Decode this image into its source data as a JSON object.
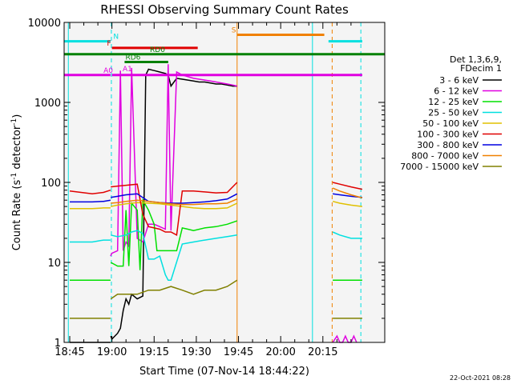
{
  "chart_data": {
    "type": "line",
    "title": "RHESSI Observing Summary Count Rates",
    "xlabel": "Start Time (07-Nov-14 18:44:22)",
    "ylabel_main": "Count Rate (s",
    "ylabel_sup1": "-1",
    "ylabel_mid": " detector",
    "ylabel_sup2": "-1",
    "ylabel_end": ")",
    "x_range_min": [
      -2,
      112
    ],
    "y_scale": "log",
    "ylim": [
      1,
      10000
    ],
    "grid": false,
    "x_ticks": [
      {
        "t": 0,
        "label": "18:45"
      },
      {
        "t": 15,
        "label": "19:00"
      },
      {
        "t": 30,
        "label": "19:15"
      },
      {
        "t": 45,
        "label": "19:30"
      },
      {
        "t": 60,
        "label": "19:45"
      },
      {
        "t": 75,
        "label": "20:00"
      },
      {
        "t": 90,
        "label": "20:15"
      }
    ],
    "y_ticks": [
      {
        "v": 1,
        "label": "1"
      },
      {
        "v": 10,
        "label": "10"
      },
      {
        "v": 100,
        "label": "100"
      },
      {
        "v": 1000,
        "label": "1000"
      },
      {
        "v": 10000,
        "label": "10000"
      }
    ],
    "legend_header": [
      "Det 1,3,6,9,",
      "FDecim 1"
    ],
    "series": [
      {
        "name": "3 - 6 keV",
        "color": "#000000",
        "segments": [
          {
            "x": [
              0,
              4,
              8,
              12,
              14.5
            ],
            "y": [
              1,
              1,
              1,
              1,
              1
            ]
          },
          {
            "x": [
              14.6,
              15,
              17,
              18,
              19,
              20,
              21,
              22,
              24,
              26,
              27,
              28,
              30,
              32,
              34,
              35,
              36,
              38,
              40,
              42,
              44,
              46,
              48,
              50,
              52,
              54,
              56,
              58,
              59.5
            ],
            "y": [
              1.2,
              1.1,
              1.3,
              1.5,
              2.5,
              3.5,
              3.0,
              4.0,
              3.5,
              3.8,
              2200,
              2600,
              2500,
              2400,
              2300,
              2200,
              1600,
              2000,
              1950,
              1900,
              1850,
              1800,
              1800,
              1750,
              1700,
              1700,
              1650,
              1600,
              1600
            ]
          }
        ]
      },
      {
        "name": "6 - 12 keV",
        "color": "#e000e0",
        "segments": [
          {
            "x": [
              14.5,
              15,
              17,
              18,
              19,
              20,
              21,
              22,
              24,
              26,
              28,
              30,
              32,
              34,
              35,
              36,
              38,
              40,
              42,
              44,
              46,
              48,
              50,
              52,
              54,
              56,
              58,
              59.5
            ],
            "y": [
              12,
              13,
              14,
              2500,
              14,
              18,
              16,
              2700,
              20,
              18,
              30,
              30,
              28,
              26,
              3000,
              25,
              2400,
              2200,
              2100,
              2000,
              1950,
              1900,
              1850,
              1800,
              1750,
              1700,
              1650,
              1600
            ]
          },
          {
            "x": [
              93.5,
              95,
              96,
              97,
              98,
              99,
              100,
              101,
              102
            ],
            "y": [
              1,
              1.2,
              1,
              1,
              1.2,
              1,
              1,
              1.2,
              1
            ]
          }
        ]
      },
      {
        "name": "12 - 25 keV",
        "color": "#00e000",
        "segments": [
          {
            "x": [
              0,
              4,
              8,
              12,
              14.5
            ],
            "y": [
              6,
              6,
              6,
              6,
              6
            ]
          },
          {
            "x": [
              14.6,
              17,
              19,
              20,
              21,
              22,
              24,
              25,
              26,
              28,
              30,
              31,
              32,
              34,
              36,
              38,
              40,
              42,
              44,
              48,
              52,
              56,
              59.5
            ],
            "y": [
              10,
              9,
              9,
              45,
              9,
              55,
              45,
              8,
              60,
              45,
              30,
              14,
              14,
              14,
              14,
              14,
              27,
              26,
              25,
              27,
              28,
              30,
              33
            ]
          },
          {
            "x": [
              93.5,
              96,
              100,
              104
            ],
            "y": [
              6,
              6,
              6,
              6
            ]
          }
        ]
      },
      {
        "name": "25 - 50 keV",
        "color": "#00e0e0",
        "segments": [
          {
            "x": [
              0,
              4,
              8,
              12,
              14.5
            ],
            "y": [
              18,
              18,
              18,
              19,
              19
            ]
          },
          {
            "x": [
              14.6,
              17,
              20,
              22,
              24,
              26,
              28,
              30,
              32,
              34,
              35,
              36,
              40,
              44,
              48,
              52,
              56,
              59.5
            ],
            "y": [
              22,
              21,
              22,
              24,
              25,
              23,
              11,
              11,
              12,
              7,
              6,
              6,
              17,
              18,
              19,
              20,
              21,
              22
            ]
          },
          {
            "x": [
              93.5,
              96,
              100,
              104
            ],
            "y": [
              24,
              22,
              20,
              20
            ]
          }
        ]
      },
      {
        "name": "50 - 100 keV",
        "color": "#e0c000",
        "segments": [
          {
            "x": [
              0,
              4,
              8,
              12,
              14.5
            ],
            "y": [
              47,
              47,
              47,
              48,
              48
            ]
          },
          {
            "x": [
              14.6,
              17,
              20,
              24,
              28,
              32,
              36,
              40,
              44,
              48,
              52,
              56,
              59.5
            ],
            "y": [
              50,
              52,
              54,
              56,
              55,
              54,
              52,
              50,
              48,
              47,
              47,
              48,
              55
            ]
          },
          {
            "x": [
              93.5,
              96,
              100,
              104
            ],
            "y": [
              58,
              55,
              52,
              50
            ]
          }
        ]
      },
      {
        "name": "100 - 300 keV",
        "color": "#e00000",
        "segments": [
          {
            "x": [
              0,
              4,
              8,
              12,
              14.5
            ],
            "y": [
              78,
              75,
              72,
              75,
              80
            ]
          },
          {
            "x": [
              14.6,
              17,
              20,
              24,
              26,
              28,
              30,
              32,
              34,
              36,
              38,
              40,
              44,
              48,
              52,
              56,
              59.5
            ],
            "y": [
              88,
              90,
              92,
              95,
              40,
              28,
              27,
              26,
              24,
              24,
              22,
              78,
              78,
              76,
              74,
              75,
              100
            ]
          },
          {
            "x": [
              93.5,
              96,
              100,
              104
            ],
            "y": [
              100,
              95,
              88,
              82
            ]
          }
        ]
      },
      {
        "name": "300 - 800 keV",
        "color": "#0000e0",
        "segments": [
          {
            "x": [
              0,
              4,
              8,
              12,
              14.5
            ],
            "y": [
              57,
              57,
              57,
              58,
              60
            ]
          },
          {
            "x": [
              14.6,
              17,
              20,
              24,
              28,
              32,
              36,
              40,
              44,
              48,
              52,
              56,
              59.5
            ],
            "y": [
              65,
              67,
              70,
              72,
              58,
              56,
              55,
              55,
              56,
              57,
              59,
              62,
              72
            ]
          },
          {
            "x": [
              93.5,
              96,
              100,
              104
            ],
            "y": [
              72,
              70,
              67,
              65
            ]
          }
        ]
      },
      {
        "name": "800 - 7000 keV",
        "color": "#f08000",
        "segments": [
          {
            "x": [
              14.6,
              17,
              20,
              24,
              28,
              32,
              36,
              40,
              44,
              48,
              52,
              56,
              59.5
            ],
            "y": [
              55,
              56,
              58,
              60,
              58,
              56,
              54,
              53,
              53,
              54,
              54,
              55,
              62
            ]
          },
          {
            "x": [
              93.5,
              96,
              100,
              104
            ],
            "y": [
              85,
              78,
              70,
              64
            ]
          }
        ]
      },
      {
        "name": "7000 - 15000 keV",
        "color": "#808000",
        "segments": [
          {
            "x": [
              0,
              4,
              8,
              12,
              14.5
            ],
            "y": [
              2,
              2,
              2,
              2,
              2
            ]
          },
          {
            "x": [
              14.6,
              17,
              20,
              24,
              28,
              32,
              36,
              40,
              44,
              48,
              52,
              56,
              59.5
            ],
            "y": [
              3.5,
              4,
              4,
              4,
              4.5,
              4.5,
              5,
              4.5,
              4,
              4.5,
              4.5,
              5,
              6
            ]
          },
          {
            "x": [
              93.5,
              96,
              100,
              104
            ],
            "y": [
              2,
              2,
              2,
              2
            ]
          }
        ]
      }
    ],
    "flag_bars": [
      {
        "label": "N",
        "color": "#00e0e0",
        "y": 5800,
        "segments": [
          [
            -2,
            14.5
          ],
          [
            92,
            104
          ]
        ],
        "label_t": 15.5
      },
      {
        "label": "F",
        "color": "#e00000",
        "y": 4800,
        "segments": [
          [
            15,
            45.5
          ]
        ],
        "label_t": 13.2
      },
      {
        "label": "S",
        "color": "#f08000",
        "y": 7000,
        "segments": [
          [
            59.5,
            90.5
          ]
        ],
        "label_t": 57.5
      },
      {
        "label": "RD0",
        "color": "#008000",
        "y": 4000,
        "segments": [
          [
            -2,
            112
          ]
        ],
        "label_t": 28.5
      },
      {
        "label": "RD6",
        "color": "#008000",
        "y": 3200,
        "segments": [
          [
            19.5,
            35
          ]
        ],
        "label_t": 19.8
      },
      {
        "label": "A0",
        "color": "#e000e0",
        "y": 2200,
        "segments": [
          [
            -2,
            14.5
          ],
          [
            15,
            104
          ]
        ],
        "label_t": 12
      },
      {
        "label": "A1",
        "color": "#e000e0",
        "y": 2300,
        "segments": [],
        "label_t": 18.8
      }
    ],
    "vlines": [
      {
        "t": -0.5,
        "color": "#00e0e0",
        "dash": false
      },
      {
        "t": 14.8,
        "color": "#00e0e0",
        "dash": true
      },
      {
        "t": 59.5,
        "color": "#f08000",
        "dash": false
      },
      {
        "t": 86.3,
        "color": "#00e0e0",
        "dash": false
      },
      {
        "t": 93.3,
        "color": "#f08000",
        "dash": true
      },
      {
        "t": 103.5,
        "color": "#00e0e0",
        "dash": true
      }
    ]
  },
  "timestamp": "22-Oct-2021 08:28"
}
